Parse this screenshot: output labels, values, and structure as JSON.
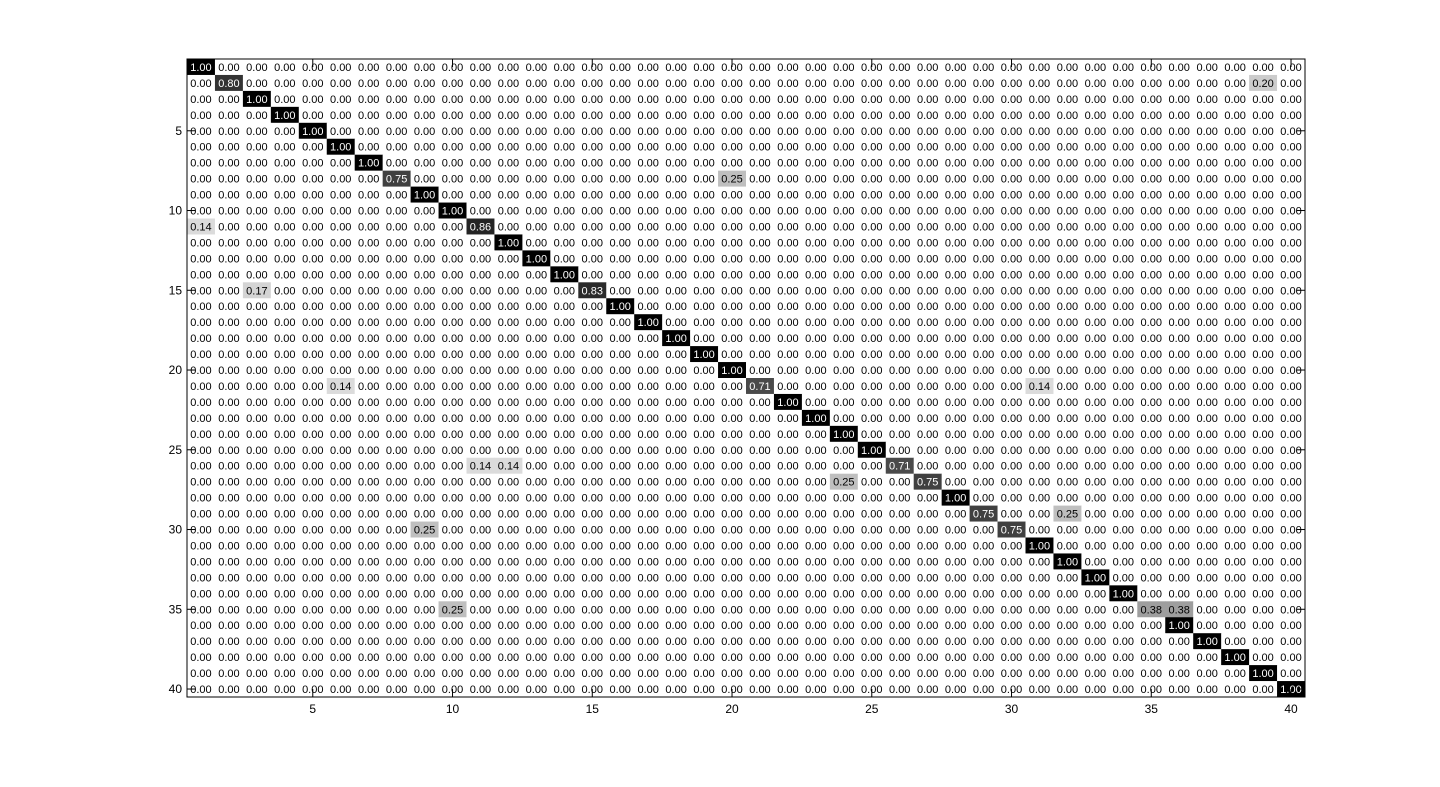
{
  "chart_data": {
    "type": "heatmap",
    "title": "",
    "xlabel": "",
    "ylabel": "",
    "rows": 40,
    "cols": 40,
    "value_format": "0.00",
    "colormap": "inverted-gray",
    "cell_colors": {
      "high": "#000000",
      "low": "#ffffff"
    },
    "text_colors": {
      "on_dark": "#ffffff",
      "on_light": "#000000"
    },
    "xlim": [
      0.5,
      40.5
    ],
    "ylim": [
      0.5,
      40.5
    ],
    "y_reversed": true,
    "xticks": [
      5,
      10,
      15,
      20,
      25,
      30,
      35,
      40
    ],
    "yticks": [
      5,
      10,
      15,
      20,
      25,
      30,
      35,
      40
    ],
    "xtick_labels": [
      "5",
      "10",
      "15",
      "20",
      "25",
      "30",
      "35",
      "40"
    ],
    "ytick_labels": [
      "5",
      "10",
      "15",
      "20",
      "25",
      "30",
      "35",
      "40"
    ],
    "grid": false,
    "default_value": 0.0,
    "nonzero_cells": [
      {
        "row": 1,
        "col": 1,
        "value": 1.0
      },
      {
        "row": 2,
        "col": 2,
        "value": 0.8
      },
      {
        "row": 2,
        "col": 39,
        "value": 0.2
      },
      {
        "row": 3,
        "col": 3,
        "value": 1.0
      },
      {
        "row": 4,
        "col": 4,
        "value": 1.0
      },
      {
        "row": 5,
        "col": 5,
        "value": 1.0
      },
      {
        "row": 6,
        "col": 6,
        "value": 1.0
      },
      {
        "row": 7,
        "col": 7,
        "value": 1.0
      },
      {
        "row": 8,
        "col": 8,
        "value": 0.75
      },
      {
        "row": 8,
        "col": 20,
        "value": 0.25
      },
      {
        "row": 9,
        "col": 9,
        "value": 1.0
      },
      {
        "row": 10,
        "col": 10,
        "value": 1.0
      },
      {
        "row": 11,
        "col": 1,
        "value": 0.14
      },
      {
        "row": 11,
        "col": 11,
        "value": 0.86
      },
      {
        "row": 12,
        "col": 12,
        "value": 1.0
      },
      {
        "row": 13,
        "col": 13,
        "value": 1.0
      },
      {
        "row": 14,
        "col": 14,
        "value": 1.0
      },
      {
        "row": 15,
        "col": 3,
        "value": 0.17
      },
      {
        "row": 15,
        "col": 15,
        "value": 0.83
      },
      {
        "row": 16,
        "col": 16,
        "value": 1.0
      },
      {
        "row": 17,
        "col": 17,
        "value": 1.0
      },
      {
        "row": 18,
        "col": 18,
        "value": 1.0
      },
      {
        "row": 19,
        "col": 19,
        "value": 1.0
      },
      {
        "row": 20,
        "col": 20,
        "value": 1.0
      },
      {
        "row": 21,
        "col": 6,
        "value": 0.14
      },
      {
        "row": 21,
        "col": 21,
        "value": 0.71
      },
      {
        "row": 21,
        "col": 31,
        "value": 0.14
      },
      {
        "row": 22,
        "col": 22,
        "value": 1.0
      },
      {
        "row": 23,
        "col": 23,
        "value": 1.0
      },
      {
        "row": 24,
        "col": 24,
        "value": 1.0
      },
      {
        "row": 25,
        "col": 25,
        "value": 1.0
      },
      {
        "row": 26,
        "col": 11,
        "value": 0.14
      },
      {
        "row": 26,
        "col": 12,
        "value": 0.14
      },
      {
        "row": 26,
        "col": 26,
        "value": 0.71
      },
      {
        "row": 27,
        "col": 24,
        "value": 0.25
      },
      {
        "row": 27,
        "col": 27,
        "value": 0.75
      },
      {
        "row": 28,
        "col": 28,
        "value": 1.0
      },
      {
        "row": 29,
        "col": 29,
        "value": 0.75
      },
      {
        "row": 29,
        "col": 32,
        "value": 0.25
      },
      {
        "row": 30,
        "col": 9,
        "value": 0.25
      },
      {
        "row": 30,
        "col": 30,
        "value": 0.75
      },
      {
        "row": 31,
        "col": 31,
        "value": 1.0
      },
      {
        "row": 32,
        "col": 32,
        "value": 1.0
      },
      {
        "row": 33,
        "col": 33,
        "value": 1.0
      },
      {
        "row": 34,
        "col": 34,
        "value": 1.0
      },
      {
        "row": 35,
        "col": 10,
        "value": 0.25
      },
      {
        "row": 35,
        "col": 35,
        "value": 0.38
      },
      {
        "row": 35,
        "col": 36,
        "value": 0.38
      },
      {
        "row": 36,
        "col": 36,
        "value": 1.0
      },
      {
        "row": 37,
        "col": 37,
        "value": 1.0
      },
      {
        "row": 38,
        "col": 38,
        "value": 1.0
      },
      {
        "row": 39,
        "col": 39,
        "value": 1.0
      },
      {
        "row": 40,
        "col": 40,
        "value": 1.0
      }
    ]
  }
}
